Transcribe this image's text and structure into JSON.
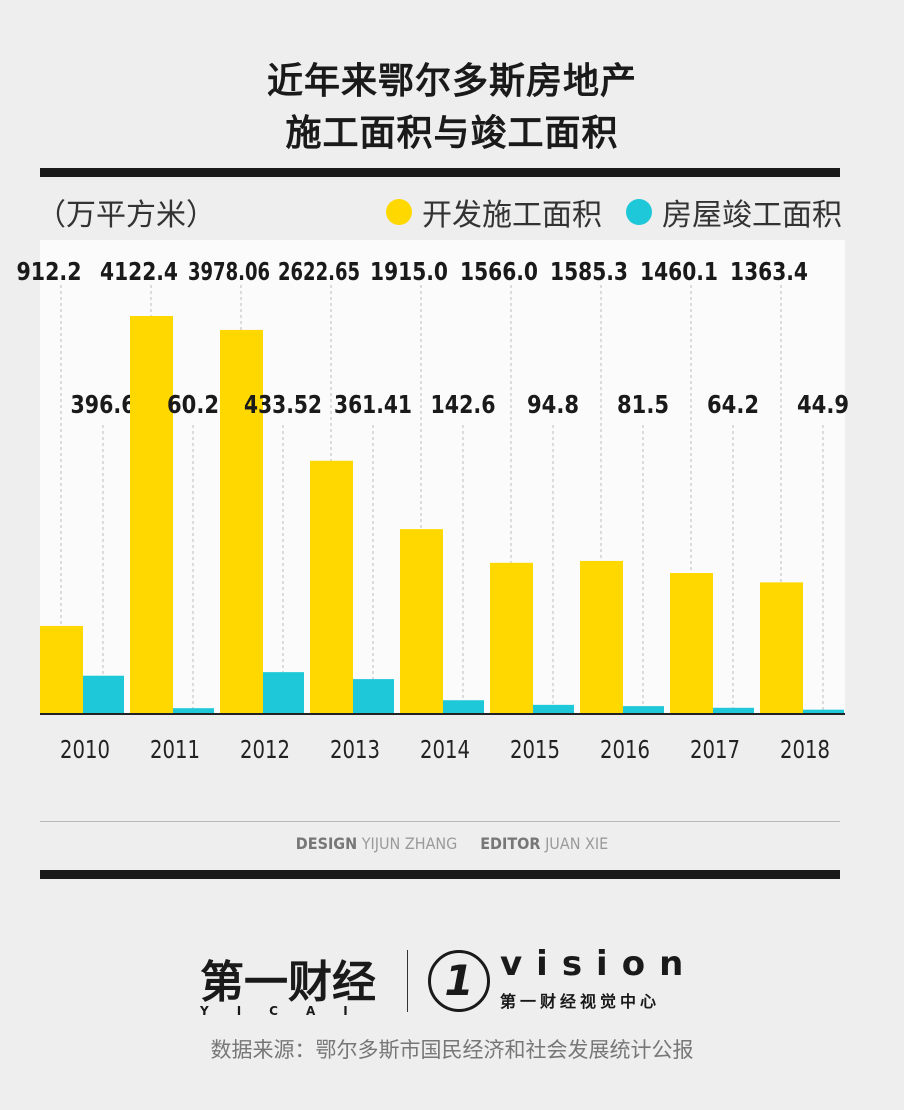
{
  "title_line1": "近年来鄂尔多斯房地产",
  "title_line2": "施工面积与竣工面积",
  "unit": "（万平方米）",
  "legend": [
    {
      "name": "开发施工面积",
      "color": "#ffd800"
    },
    {
      "name": "房屋竣工面积",
      "color": "#1ec8d8"
    }
  ],
  "chart_data": {
    "type": "bar",
    "categories": [
      "2010",
      "2011",
      "2012",
      "2013",
      "2014",
      "2015",
      "2016",
      "2017",
      "2018"
    ],
    "series": [
      {
        "name": "开发施工面积",
        "color": "#ffd800",
        "values": [
          912.2,
          4122.4,
          3978.06,
          2622.65,
          1915.0,
          1566.0,
          1585.3,
          1460.1,
          1363.4
        ],
        "labels": [
          "912.2",
          "4122.4",
          "3978.06",
          "2622.65",
          "1915.0",
          "1566.0",
          "1585.3",
          "1460.1",
          "1363.4"
        ]
      },
      {
        "name": "房屋竣工面积",
        "color": "#1ec8d8",
        "values": [
          396.6,
          60.2,
          433.52,
          361.41,
          142.6,
          94.8,
          81.5,
          64.2,
          44.9
        ],
        "labels": [
          "396.6",
          "60.2",
          "433.52",
          "361.41",
          "142.6",
          "94.8",
          "81.5",
          "64.2",
          "44.9"
        ]
      }
    ],
    "ylim": [
      0,
      4900
    ],
    "grid": false
  },
  "credits": {
    "design_label": "DESIGN",
    "design_name": "YIJUN ZHANG",
    "editor_label": "EDITOR",
    "editor_name": "JUAN XIE"
  },
  "logo": {
    "yicai": "第一财经",
    "yicai_en": "YICAI",
    "vision": "vision",
    "vision_cn": "第一财经视觉中心"
  },
  "source": "数据来源：鄂尔多斯市国民经济和社会发展统计公报"
}
